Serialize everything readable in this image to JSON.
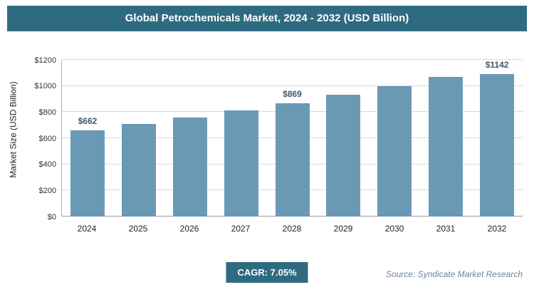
{
  "header": {
    "title": "Global Petrochemicals Market, 2024 - 2032 (USD Billion)"
  },
  "chart_data": {
    "type": "bar",
    "title": "Global Petrochemicals Market, 2024 - 2032 (USD Billion)",
    "categories": [
      "2024",
      "2025",
      "2026",
      "2027",
      "2028",
      "2029",
      "2030",
      "2031",
      "2032"
    ],
    "values": [
      662,
      709,
      759,
      812,
      869,
      931,
      996,
      1067,
      1142
    ],
    "value_labels": [
      "$662",
      "",
      "",
      "",
      "$869",
      "",
      "",
      "",
      "$1142"
    ],
    "xlabel": "",
    "ylabel": "Market Size (USD Billion)",
    "yticks": [
      "$0",
      "$200",
      "$400",
      "$600",
      "$800",
      "$1000",
      "$1200"
    ],
    "ylim": [
      0,
      1200
    ],
    "grid": true,
    "legend": "none",
    "bar_color": "#6a99b5"
  },
  "footer": {
    "cagr_label": "CAGR: 7.05%",
    "source": "Source: Syndicate Market Research"
  }
}
